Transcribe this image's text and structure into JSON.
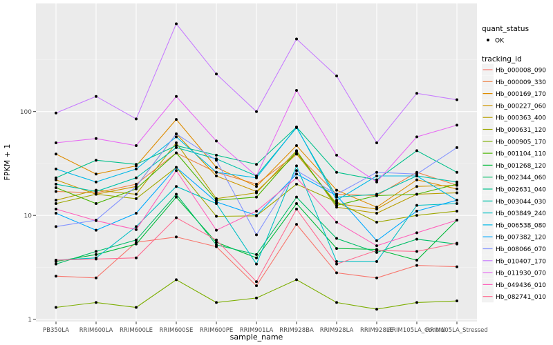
{
  "chart_data": {
    "type": "line",
    "title": "",
    "xlabel": "sample_name",
    "ylabel": "FPKM + 1",
    "y_scale": "log10",
    "ylim": [
      0.95,
      1100
    ],
    "y_ticks": [
      1,
      10,
      100
    ],
    "y_tick_labels": [
      "1",
      "10",
      "100"
    ],
    "grid": true,
    "legend_position": "right",
    "categories": [
      "PB350LA",
      "RRIM600LA",
      "RRIM600LE",
      "RRIM600SE",
      "RRIM600PE",
      "RRIM901LA",
      "RRIM928BA",
      "RRIM928LA",
      "RRIM928LE",
      "RRIM105LA_Control",
      "RRIM105LA_Stressed"
    ],
    "shape_legend": {
      "title": "quant_status",
      "items": [
        "OK"
      ]
    },
    "color_legend_title": "tracking_id",
    "series": [
      {
        "name": "Hb_000008_090",
        "color": "#F8766D",
        "values": [
          2.6,
          2.5,
          5.5,
          6.2,
          5.0,
          2.1,
          8.2,
          2.8,
          2.5,
          3.3,
          3.2
        ]
      },
      {
        "name": "Hb_000009_330",
        "color": "#EE8044",
        "values": [
          17.0,
          16.5,
          20.0,
          40.0,
          26.0,
          20.0,
          39.0,
          16.0,
          15.5,
          26.0,
          19.5
        ]
      },
      {
        "name": "Hb_000169_170",
        "color": "#DE8C00",
        "values": [
          39.0,
          25.0,
          30.0,
          84.0,
          29.0,
          19.0,
          47.0,
          17.5,
          12.0,
          22.0,
          18.0
        ]
      },
      {
        "name": "Hb_000227_060",
        "color": "#CD9600",
        "values": [
          22.0,
          16.0,
          19.0,
          61.0,
          24.0,
          17.0,
          39.0,
          13.0,
          11.5,
          19.0,
          19.5
        ]
      },
      {
        "name": "Hb_000363_400",
        "color": "#B79F00",
        "values": [
          14.0,
          17.5,
          16.0,
          50.0,
          14.5,
          16.5,
          42.0,
          12.0,
          10.5,
          16.0,
          16.5
        ]
      },
      {
        "name": "Hb_000631_120",
        "color": "#9DA700",
        "values": [
          13.0,
          16.0,
          14.5,
          29.0,
          9.8,
          9.9,
          20.0,
          13.5,
          8.6,
          10.0,
          11.0
        ]
      },
      {
        "name": "Hb_000905_170",
        "color": "#7CAE00",
        "values": [
          1.3,
          1.45,
          1.3,
          2.4,
          1.45,
          1.6,
          2.4,
          1.45,
          1.25,
          1.45,
          1.5
        ]
      },
      {
        "name": "Hb_001104_110",
        "color": "#49B500",
        "values": [
          18.5,
          13.0,
          18.0,
          40.0,
          14.0,
          15.0,
          41.0,
          12.5,
          15.5,
          16.0,
          20.0
        ]
      },
      {
        "name": "Hb_001268_120",
        "color": "#00BA38",
        "values": [
          3.6,
          4.2,
          5.3,
          15.0,
          5.5,
          3.9,
          13.0,
          4.8,
          4.7,
          3.7,
          9.0
        ]
      },
      {
        "name": "Hb_002344_060",
        "color": "#00BE67",
        "values": [
          3.4,
          4.5,
          5.8,
          16.0,
          5.2,
          4.2,
          15.0,
          6.0,
          4.4,
          5.9,
          5.3
        ]
      },
      {
        "name": "Hb_002631_040",
        "color": "#00C08B",
        "values": [
          23.0,
          34.0,
          31.0,
          47.0,
          38.0,
          31.0,
          71.0,
          26.0,
          22.0,
          42.0,
          26.0
        ]
      },
      {
        "name": "Hb_003044_030",
        "color": "#00C1AA",
        "values": [
          20.0,
          17.0,
          23.0,
          45.0,
          35.0,
          24.0,
          70.0,
          15.0,
          16.0,
          24.0,
          21.0
        ]
      },
      {
        "name": "Hb_003849_240",
        "color": "#00BFC4",
        "values": [
          3.7,
          3.9,
          7.8,
          19.0,
          13.0,
          3.4,
          30.0,
          3.6,
          3.6,
          12.5,
          13.0
        ]
      },
      {
        "name": "Hb_006538_080",
        "color": "#00B8E7",
        "values": [
          28.0,
          21.0,
          28.0,
          57.0,
          26.0,
          23.0,
          71.0,
          14.0,
          24.0,
          24.0,
          14.0
        ]
      },
      {
        "name": "Hb_007382_120",
        "color": "#00A9FF",
        "values": [
          10.5,
          7.2,
          10.5,
          29.0,
          13.5,
          10.0,
          25.0,
          15.5,
          5.7,
          11.0,
          14.0
        ]
      },
      {
        "name": "Hb_008066_070",
        "color": "#8494FF",
        "values": [
          7.8,
          9.0,
          19.0,
          61.0,
          34.0,
          6.5,
          27.0,
          16.0,
          26.0,
          25.0,
          45.0
        ]
      },
      {
        "name": "Hb_010407_170",
        "color": "#C77CFF",
        "values": [
          97.0,
          140.0,
          85.0,
          700.0,
          230.0,
          100.0,
          500.0,
          220.0,
          50.0,
          150.0,
          130.0
        ]
      },
      {
        "name": "Hb_011930_070",
        "color": "#E76BF3",
        "values": [
          50.0,
          55.0,
          47.0,
          140.0,
          52.0,
          24.0,
          160.0,
          38.0,
          21.0,
          57.0,
          74.0
        ]
      },
      {
        "name": "Hb_049436_010",
        "color": "#FF62BC",
        "values": [
          11.5,
          8.9,
          7.3,
          27.0,
          7.2,
          11.0,
          23.0,
          8.6,
          5.1,
          6.8,
          9.0
        ]
      },
      {
        "name": "Hb_082741_010",
        "color": "#FF6C91",
        "values": [
          3.7,
          3.8,
          3.9,
          9.5,
          5.8,
          2.3,
          11.5,
          3.4,
          4.6,
          4.5,
          5.4
        ]
      }
    ]
  }
}
